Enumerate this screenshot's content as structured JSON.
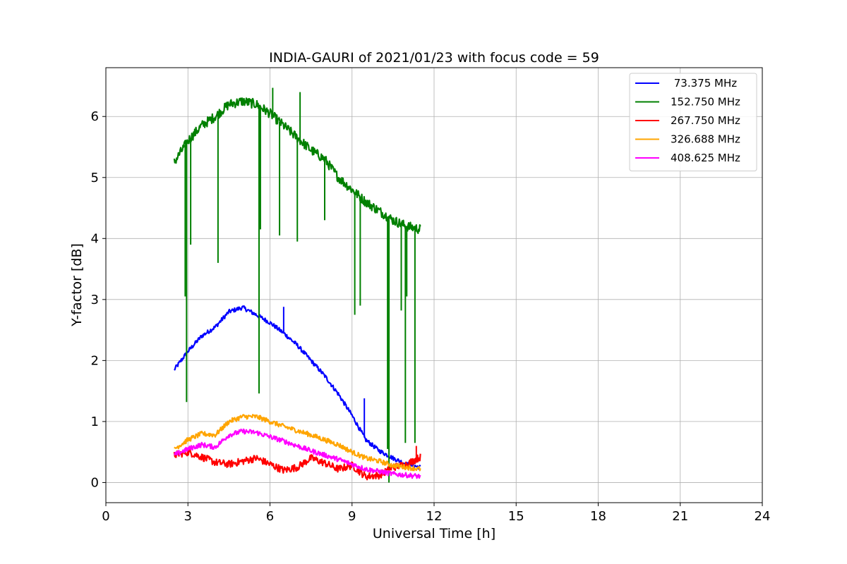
{
  "chart_data": {
    "type": "line",
    "title": "INDIA-GAURI of 2021/01/23 with focus code = 59",
    "xlabel": "Universal Time [h]",
    "ylabel": "Y-factor [dB]",
    "xlim": [
      0,
      24
    ],
    "ylim": [
      -0.33,
      6.8
    ],
    "xticks": [
      0,
      3,
      6,
      9,
      12,
      15,
      18,
      21,
      24
    ],
    "xtick_labels": [
      "0",
      "3",
      "6",
      "9",
      "12",
      "15",
      "18",
      "21",
      "24"
    ],
    "yticks": [
      0,
      1,
      2,
      3,
      4,
      5,
      6
    ],
    "ytick_labels": [
      "0",
      "1",
      "2",
      "3",
      "4",
      "5",
      "6"
    ],
    "grid": true,
    "legend_position": "top-right",
    "series": [
      {
        "name": " 73.375 MHz",
        "color": "#0000ff",
        "x": [
          2.5,
          3.0,
          3.5,
          4.0,
          4.5,
          5.0,
          5.5,
          6.0,
          6.5,
          7.0,
          7.5,
          8.0,
          8.5,
          9.0,
          9.5,
          10.0,
          10.5,
          11.0,
          11.5
        ],
        "y": [
          1.85,
          2.15,
          2.4,
          2.55,
          2.8,
          2.87,
          2.75,
          2.62,
          2.45,
          2.25,
          2.0,
          1.75,
          1.45,
          1.1,
          0.7,
          0.52,
          0.4,
          0.3,
          0.25
        ],
        "spikes": [
          [
            6.5,
            2.88
          ],
          [
            9.45,
            1.38
          ]
        ]
      },
      {
        "name": "152.750 MHz",
        "color": "#008000",
        "x": [
          2.5,
          3.0,
          3.5,
          4.0,
          4.5,
          5.0,
          5.5,
          6.0,
          6.5,
          7.0,
          7.5,
          8.0,
          8.5,
          9.0,
          9.5,
          10.0,
          10.5,
          11.0,
          11.5
        ],
        "y": [
          5.25,
          5.6,
          5.85,
          6.0,
          6.2,
          6.25,
          6.2,
          6.05,
          5.85,
          5.65,
          5.45,
          5.3,
          5.0,
          4.8,
          4.6,
          4.45,
          4.3,
          4.2,
          4.15
        ],
        "spikes": [
          [
            2.9,
            3.05
          ],
          [
            2.95,
            1.32
          ],
          [
            3.1,
            3.9
          ],
          [
            4.1,
            3.6
          ],
          [
            5.6,
            1.46
          ],
          [
            5.65,
            4.15
          ],
          [
            6.35,
            4.05
          ],
          [
            7.0,
            3.95
          ],
          [
            7.1,
            6.4
          ],
          [
            6.1,
            6.47
          ],
          [
            8.0,
            4.3
          ],
          [
            9.1,
            2.75
          ],
          [
            9.3,
            2.9
          ],
          [
            10.3,
            0.55
          ],
          [
            10.35,
            0.0
          ],
          [
            10.8,
            2.82
          ],
          [
            10.95,
            0.65
          ],
          [
            11.3,
            0.65
          ],
          [
            11.0,
            3.05
          ]
        ]
      },
      {
        "name": "267.750 MHz",
        "color": "#ff0000",
        "x": [
          2.5,
          3.0,
          3.5,
          4.0,
          4.5,
          5.0,
          5.5,
          6.0,
          6.5,
          7.0,
          7.5,
          8.0,
          8.5,
          9.0,
          9.5,
          10.0,
          10.5,
          11.0,
          11.5
        ],
        "y": [
          0.45,
          0.5,
          0.42,
          0.33,
          0.3,
          0.35,
          0.4,
          0.3,
          0.2,
          0.25,
          0.4,
          0.32,
          0.22,
          0.28,
          0.1,
          0.12,
          0.25,
          0.3,
          0.42
        ],
        "spikes": [
          [
            11.35,
            0.6
          ]
        ]
      },
      {
        "name": "326.688 MHz",
        "color": "#ffa500",
        "x": [
          2.5,
          3.0,
          3.5,
          4.0,
          4.5,
          5.0,
          5.5,
          6.0,
          6.5,
          7.0,
          7.5,
          8.0,
          8.5,
          9.0,
          9.5,
          10.0,
          10.5,
          11.0,
          11.5
        ],
        "y": [
          0.55,
          0.7,
          0.8,
          0.78,
          1.0,
          1.08,
          1.08,
          1.0,
          0.92,
          0.85,
          0.78,
          0.7,
          0.62,
          0.5,
          0.4,
          0.35,
          0.28,
          0.25,
          0.22
        ],
        "spikes": []
      },
      {
        "name": "408.625 MHz",
        "color": "#ff00ff",
        "x": [
          2.5,
          3.0,
          3.5,
          4.0,
          4.5,
          5.0,
          5.5,
          6.0,
          6.5,
          7.0,
          7.5,
          8.0,
          8.5,
          9.0,
          9.5,
          10.0,
          10.5,
          11.0,
          11.5
        ],
        "y": [
          0.45,
          0.55,
          0.62,
          0.58,
          0.78,
          0.84,
          0.82,
          0.75,
          0.68,
          0.6,
          0.52,
          0.45,
          0.38,
          0.3,
          0.22,
          0.18,
          0.14,
          0.12,
          0.1
        ],
        "spikes": []
      }
    ]
  }
}
